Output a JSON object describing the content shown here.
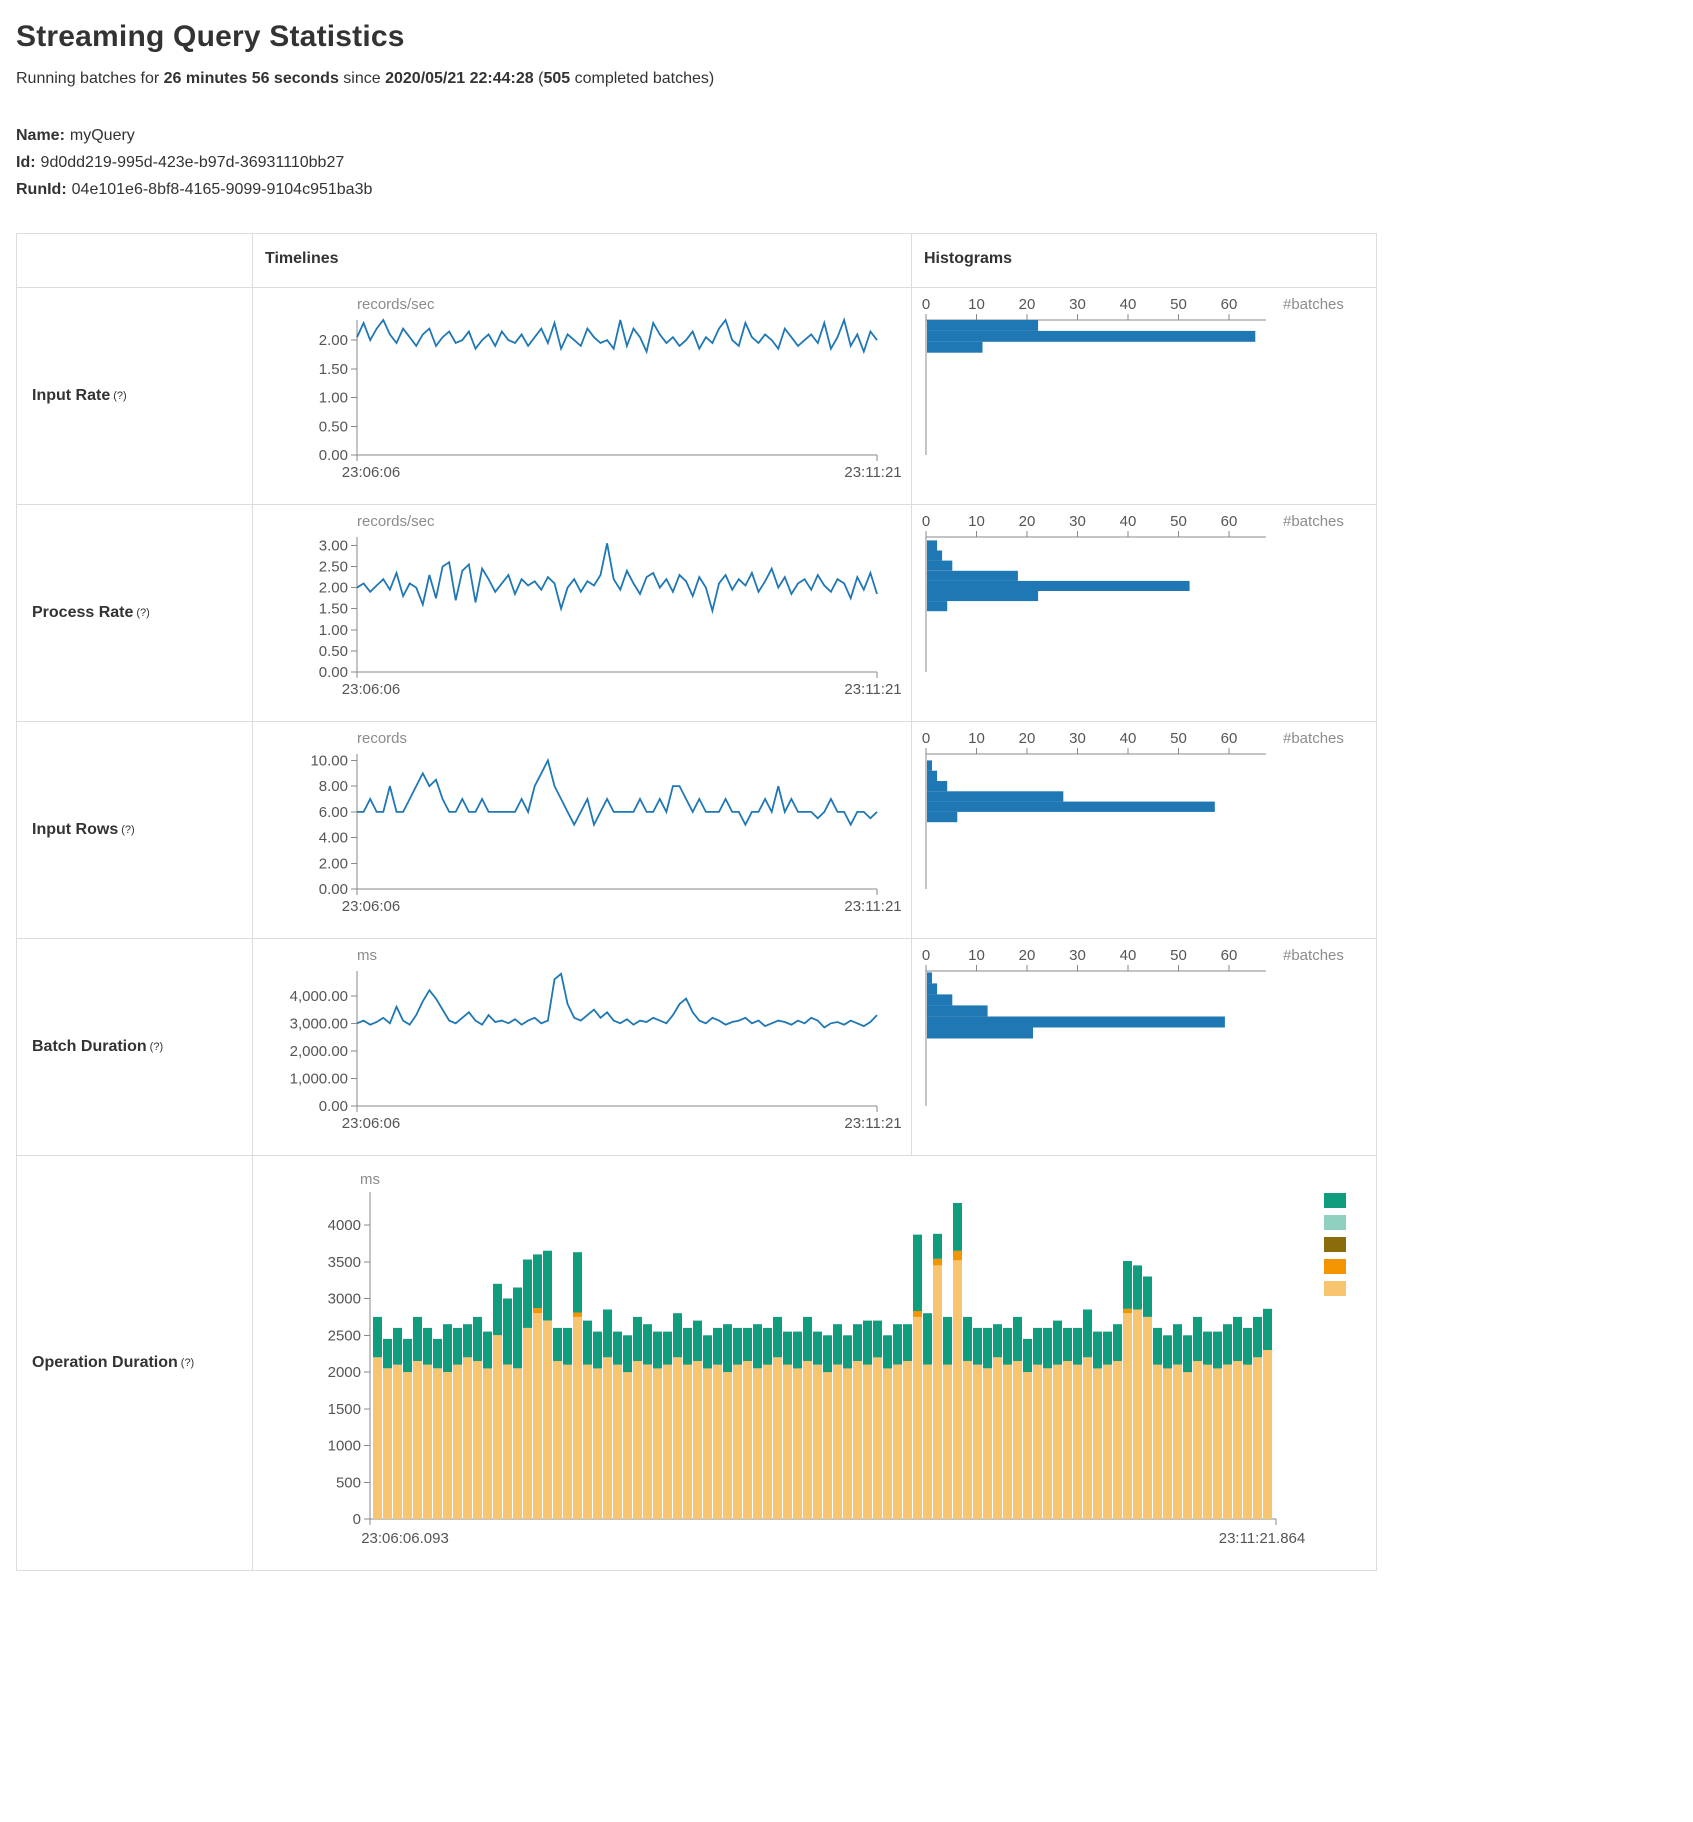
{
  "page": {
    "title": "Streaming Query Statistics",
    "status": {
      "text1": "Running batches for ",
      "strong1": "26 minutes 56 seconds",
      "text2": " since ",
      "strong2": "2020/05/21 22:44:28",
      "text3": " (",
      "strong3": "505",
      "text4": " completed batches)"
    },
    "name_label": "Name:",
    "name_value": "myQuery",
    "id_label": "Id:",
    "id_value": "9d0dd219-995d-423e-b97d-36931110bb27",
    "runid_label": "RunId:",
    "runid_value": "04e101e6-8bf8-4165-9099-9104c951ba3b"
  },
  "table_header": {
    "timelines": "Timelines",
    "histograms": "Histograms"
  },
  "help_marker": "(?)",
  "colors": {
    "line": "#1f77b4",
    "hist_bar": "#1f77b4",
    "axis": "#888888",
    "tick_text": "#555555",
    "unit_text": "#8c8c8c"
  },
  "chart_data": {
    "rows": [
      {
        "label": "Input Rate",
        "timeline": {
          "type": "line",
          "unit": "records/sec",
          "x_start": "23:06:06",
          "x_end": "23:11:21",
          "ymax": 2.35,
          "yticks": [
            2.0,
            1.5,
            1.0,
            0.5,
            0.0
          ],
          "ytick_labels": [
            "2.00",
            "1.50",
            "1.00",
            "0.50",
            "0.00"
          ],
          "values": [
            2.05,
            2.3,
            2.0,
            2.2,
            2.35,
            2.1,
            1.95,
            2.2,
            2.05,
            1.9,
            2.1,
            2.2,
            1.9,
            2.05,
            2.15,
            1.95,
            2.0,
            2.15,
            1.85,
            2.0,
            2.1,
            1.9,
            2.15,
            2.0,
            1.95,
            2.1,
            1.9,
            2.05,
            2.2,
            1.95,
            2.3,
            1.85,
            2.1,
            2.0,
            1.9,
            2.2,
            2.05,
            1.95,
            2.0,
            1.85,
            2.35,
            1.9,
            2.2,
            2.05,
            1.8,
            2.3,
            2.1,
            1.95,
            2.05,
            1.9,
            2.0,
            2.15,
            1.85,
            2.05,
            1.95,
            2.2,
            2.35,
            2.0,
            1.9,
            2.3,
            2.05,
            1.95,
            2.1,
            2.0,
            1.85,
            2.2,
            2.05,
            1.9,
            2.0,
            2.1,
            1.95,
            2.3,
            1.85,
            2.05,
            2.35,
            1.9,
            2.1,
            1.8,
            2.15,
            2.0
          ]
        },
        "histogram": {
          "type": "bar",
          "axis_label": "#batches",
          "xticks": [
            0,
            10,
            20,
            30,
            40,
            50,
            60
          ],
          "bars": [
            {
              "hi": 2.35,
              "lo": 2.16,
              "n": 22
            },
            {
              "hi": 2.16,
              "lo": 1.97,
              "n": 65
            },
            {
              "hi": 1.97,
              "lo": 1.78,
              "n": 11
            }
          ]
        }
      },
      {
        "label": "Process Rate",
        "timeline": {
          "type": "line",
          "unit": "records/sec",
          "x_start": "23:06:06",
          "x_end": "23:11:21",
          "ymax": 3.2,
          "yticks": [
            3.0,
            2.5,
            2.0,
            1.5,
            1.0,
            0.5,
            0.0
          ],
          "ytick_labels": [
            "3.00",
            "2.50",
            "2.00",
            "1.50",
            "1.00",
            "0.50",
            "0.00"
          ],
          "values": [
            2.0,
            2.1,
            1.9,
            2.05,
            2.2,
            1.95,
            2.35,
            1.8,
            2.1,
            2.0,
            1.6,
            2.3,
            1.75,
            2.5,
            2.6,
            1.7,
            2.4,
            2.55,
            1.65,
            2.45,
            2.2,
            1.9,
            2.1,
            2.3,
            1.85,
            2.2,
            2.05,
            2.15,
            1.95,
            2.25,
            2.1,
            1.5,
            2.0,
            2.2,
            1.9,
            2.15,
            2.05,
            2.3,
            3.05,
            2.2,
            1.95,
            2.4,
            2.1,
            1.85,
            2.25,
            2.35,
            2.0,
            2.2,
            1.9,
            2.3,
            2.15,
            1.8,
            2.25,
            2.0,
            1.45,
            2.1,
            2.3,
            1.95,
            2.2,
            2.05,
            2.35,
            1.9,
            2.15,
            2.45,
            2.0,
            2.25,
            1.85,
            2.1,
            2.2,
            1.95,
            2.3,
            2.05,
            1.9,
            2.2,
            2.1,
            1.75,
            2.25,
            1.95,
            2.35,
            1.85
          ]
        },
        "histogram": {
          "type": "bar",
          "axis_label": "#batches",
          "xticks": [
            0,
            10,
            20,
            30,
            40,
            50,
            60
          ],
          "bars": [
            {
              "hi": 3.12,
              "lo": 2.88,
              "n": 2
            },
            {
              "hi": 2.88,
              "lo": 2.64,
              "n": 3
            },
            {
              "hi": 2.64,
              "lo": 2.4,
              "n": 5
            },
            {
              "hi": 2.4,
              "lo": 2.16,
              "n": 18
            },
            {
              "hi": 2.16,
              "lo": 1.92,
              "n": 52
            },
            {
              "hi": 1.92,
              "lo": 1.68,
              "n": 22
            },
            {
              "hi": 1.68,
              "lo": 1.44,
              "n": 4
            }
          ]
        }
      },
      {
        "label": "Input Rows",
        "timeline": {
          "type": "line",
          "unit": "records",
          "x_start": "23:06:06",
          "x_end": "23:11:21",
          "ymax": 10.5,
          "yticks": [
            10,
            8,
            6,
            4,
            2,
            0
          ],
          "ytick_labels": [
            "10.00",
            "8.00",
            "6.00",
            "4.00",
            "2.00",
            "0.00"
          ],
          "values": [
            6,
            6,
            7,
            6,
            6,
            8,
            6,
            6,
            7,
            8,
            9,
            8,
            8.5,
            7,
            6,
            6,
            7,
            6,
            6,
            7,
            6,
            6,
            6,
            6,
            6,
            7,
            6,
            8,
            9,
            10,
            8,
            7,
            6,
            5,
            6,
            7,
            5,
            6,
            7,
            6,
            6,
            6,
            6,
            7,
            6,
            6,
            7,
            6,
            8,
            8,
            7,
            6,
            7,
            6,
            6,
            6,
            7,
            6,
            6,
            5,
            6,
            6,
            7,
            6,
            8,
            6,
            7,
            6,
            6,
            6,
            5.5,
            6,
            7,
            6,
            6,
            5,
            6,
            6,
            5.5,
            6
          ]
        },
        "histogram": {
          "type": "bar",
          "axis_label": "#batches",
          "xticks": [
            0,
            10,
            20,
            30,
            40,
            50,
            60
          ],
          "bars": [
            {
              "hi": 10.0,
              "lo": 9.2,
              "n": 1
            },
            {
              "hi": 9.2,
              "lo": 8.4,
              "n": 2
            },
            {
              "hi": 8.4,
              "lo": 7.6,
              "n": 4
            },
            {
              "hi": 7.6,
              "lo": 6.8,
              "n": 27
            },
            {
              "hi": 6.8,
              "lo": 6.0,
              "n": 57
            },
            {
              "hi": 6.0,
              "lo": 5.2,
              "n": 6
            }
          ]
        }
      },
      {
        "label": "Batch Duration",
        "timeline": {
          "type": "line",
          "unit": "ms",
          "x_start": "23:06:06",
          "x_end": "23:11:21",
          "ymax": 4900,
          "yticks": [
            4000,
            3000,
            2000,
            1000,
            0
          ],
          "ytick_labels": [
            "4,000.00",
            "3,000.00",
            "2,000.00",
            "1,000.00",
            "0.00"
          ],
          "values": [
            3000,
            3100,
            2950,
            3050,
            3200,
            3000,
            3600,
            3100,
            2950,
            3300,
            3800,
            4200,
            3900,
            3500,
            3100,
            3000,
            3200,
            3400,
            3100,
            2950,
            3300,
            3050,
            3100,
            3000,
            3150,
            2950,
            3100,
            3200,
            3000,
            3100,
            4600,
            4800,
            3700,
            3200,
            3100,
            3300,
            3500,
            3200,
            3400,
            3100,
            3000,
            3150,
            2950,
            3100,
            3050,
            3200,
            3100,
            3000,
            3300,
            3700,
            3900,
            3400,
            3100,
            3000,
            3200,
            3100,
            2950,
            3050,
            3100,
            3200,
            3000,
            3100,
            2900,
            3000,
            3100,
            3050,
            2950,
            3100,
            3000,
            3200,
            3100,
            2850,
            3000,
            3050,
            2950,
            3100,
            3000,
            2900,
            3050,
            3300
          ]
        },
        "histogram": {
          "type": "bar",
          "axis_label": "#batches",
          "xticks": [
            0,
            10,
            20,
            30,
            40,
            50,
            60
          ],
          "bars": [
            {
              "hi": 4850,
              "lo": 4450,
              "n": 1
            },
            {
              "hi": 4450,
              "lo": 4050,
              "n": 2
            },
            {
              "hi": 4050,
              "lo": 3650,
              "n": 5
            },
            {
              "hi": 3650,
              "lo": 3250,
              "n": 12
            },
            {
              "hi": 3250,
              "lo": 2850,
              "n": 59
            },
            {
              "hi": 2850,
              "lo": 2450,
              "n": 21
            }
          ]
        }
      },
      {
        "label": "Operation Duration",
        "stacked": {
          "type": "stacked-bar",
          "unit": "ms",
          "x_start": "23:06:06.093",
          "x_end": "23:11:21.864",
          "ymax": 4400,
          "yticks": [
            4000,
            3500,
            3000,
            2500,
            2000,
            1500,
            1000,
            500,
            0
          ],
          "ytick_labels": [
            "4000",
            "3500",
            "3000",
            "2500",
            "2000",
            "1500",
            "1000",
            "500",
            "0"
          ],
          "legend_colors": [
            "#109d7e",
            "#8fd0c0",
            "#8a6d0a",
            "#f29500",
            "#f7c46f"
          ],
          "series": [
            {
              "name": "series-bottom",
              "color": "#f7c46f",
              "values": [
                2200,
                2050,
                2100,
                2000,
                2150,
                2100,
                2050,
                2000,
                2100,
                2200,
                2150,
                2050,
                2500,
                2100,
                2050,
                2600,
                2800,
                2700,
                2150,
                2100,
                2750,
                2100,
                2050,
                2200,
                2100,
                2000,
                2150,
                2100,
                2050,
                2100,
                2200,
                2100,
                2150,
                2050,
                2100,
                2000,
                2100,
                2150,
                2050,
                2100,
                2200,
                2100,
                2050,
                2150,
                2100,
                2000,
                2100,
                2050,
                2150,
                2100,
                2200,
                2050,
                2100,
                2150,
                2750,
                2100,
                3450,
                2100,
                3520,
                2150,
                2100,
                2050,
                2200,
                2100,
                2150,
                2000,
                2100,
                2050,
                2100,
                2150,
                2100,
                2200,
                2050,
                2100,
                2150,
                2800,
                2850,
                2750,
                2100,
                2050,
                2100,
                2000,
                2150,
                2100,
                2050,
                2100,
                2150,
                2100,
                2200,
                2300
              ]
            },
            {
              "name": "series-middle",
              "color": "#f29500",
              "values": [
                0,
                0,
                0,
                0,
                0,
                0,
                0,
                0,
                0,
                0,
                0,
                0,
                0,
                0,
                0,
                0,
                70,
                0,
                0,
                0,
                60,
                0,
                0,
                0,
                0,
                0,
                0,
                0,
                0,
                0,
                0,
                0,
                0,
                0,
                0,
                0,
                0,
                0,
                0,
                0,
                0,
                0,
                0,
                0,
                0,
                0,
                0,
                0,
                0,
                0,
                0,
                0,
                0,
                0,
                80,
                0,
                90,
                0,
                130,
                0,
                0,
                0,
                0,
                0,
                0,
                0,
                0,
                0,
                0,
                0,
                0,
                0,
                0,
                0,
                0,
                60,
                0,
                0,
                0,
                0,
                0,
                0,
                0,
                0,
                0,
                0,
                0,
                0,
                0,
                0
              ]
            },
            {
              "name": "series-top",
              "color": "#109d7e",
              "values": [
                550,
                400,
                500,
                450,
                600,
                500,
                400,
                650,
                500,
                450,
                600,
                500,
                700,
                900,
                1100,
                930,
                730,
                950,
                450,
                500,
                820,
                600,
                500,
                650,
                450,
                500,
                600,
                550,
                500,
                450,
                600,
                500,
                550,
                450,
                500,
                650,
                500,
                450,
                600,
                500,
                550,
                450,
                500,
                600,
                450,
                500,
                550,
                450,
                500,
                600,
                500,
                450,
                550,
                500,
                1040,
                700,
                340,
                650,
                650,
                600,
                500,
                550,
                450,
                500,
                600,
                450,
                500,
                550,
                600,
                450,
                500,
                650,
                500,
                450,
                500,
                650,
                600,
                550,
                500,
                450,
                550,
                500,
                600,
                450,
                500,
                550,
                600,
                500,
                550,
                560
              ]
            }
          ]
        }
      }
    ]
  }
}
